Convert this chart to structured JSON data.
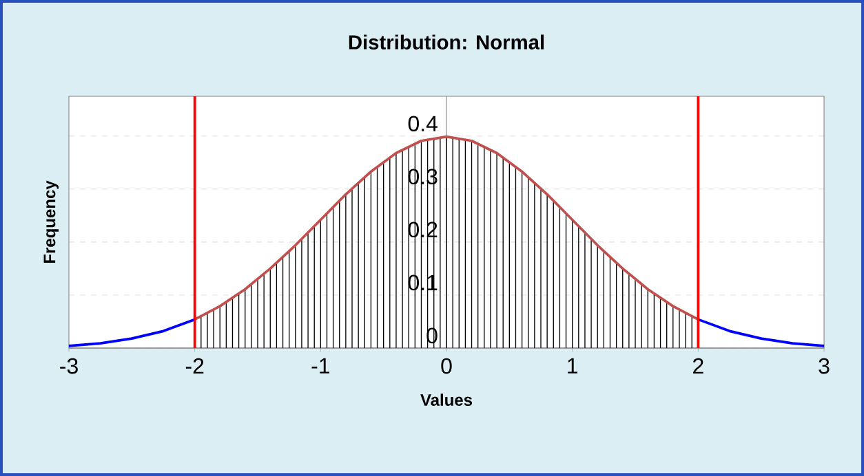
{
  "chart_data": {
    "type": "line",
    "title": "Distribution:  Normal",
    "xlabel": "Values",
    "ylabel": "Frequency",
    "series": [
      {
        "color": "#0000ff",
        "x": [
          -3,
          -2.75,
          -2.5,
          -2.25,
          -2,
          0,
          2,
          2.25,
          2.5,
          2.75,
          3
        ],
        "values": [
          0.004,
          0.009,
          0.018,
          0.032,
          0.054,
          null,
          0.054,
          0.032,
          0.018,
          0.009,
          0.004
        ]
      },
      {
        "type": "bar",
        "color": "#000000",
        "x": [
          -1.95,
          -1.9,
          -1.85,
          -1.8,
          -1.75,
          -1.7,
          -1.65,
          -1.6,
          -1.55,
          -1.5,
          -1.45,
          -1.4,
          -1.35,
          -1.3,
          -1.25,
          -1.2,
          -1.15,
          -1.1,
          -1.05,
          -1,
          -0.95,
          -0.9,
          -0.85,
          -0.8,
          -0.75,
          -0.7,
          -0.65,
          -0.6,
          -0.55,
          -0.5,
          -0.45,
          -0.4,
          -0.35,
          -0.3,
          -0.25,
          -0.2,
          -0.15,
          -0.1,
          -0.05,
          0,
          0.05,
          0.1,
          0.15,
          0.2,
          0.25,
          0.3,
          0.35,
          0.4,
          0.45,
          0.5,
          0.55,
          0.6,
          0.65,
          0.7,
          0.75,
          0.8,
          0.85,
          0.9,
          0.95,
          1,
          1.05,
          1.1,
          1.15,
          1.2,
          1.25,
          1.3,
          1.35,
          1.4,
          1.45,
          1.5,
          1.55,
          1.6,
          1.65,
          1.7,
          1.75,
          1.8,
          1.85,
          1.9,
          1.95
        ],
        "values": [
          0.06,
          0.066,
          0.072,
          0.079,
          0.086,
          0.094,
          0.102,
          0.111,
          0.12,
          0.13,
          0.139,
          0.15,
          0.16,
          0.171,
          0.183,
          0.194,
          0.206,
          0.218,
          0.23,
          0.242,
          0.254,
          0.266,
          0.278,
          0.29,
          0.301,
          0.312,
          0.323,
          0.333,
          0.343,
          0.352,
          0.361,
          0.368,
          0.375,
          0.381,
          0.387,
          0.391,
          0.394,
          0.397,
          0.398,
          0.399,
          0.398,
          0.397,
          0.394,
          0.391,
          0.387,
          0.381,
          0.375,
          0.368,
          0.361,
          0.352,
          0.343,
          0.333,
          0.323,
          0.312,
          0.301,
          0.29,
          0.278,
          0.266,
          0.254,
          0.242,
          0.23,
          0.218,
          0.206,
          0.194,
          0.183,
          0.171,
          0.16,
          0.15,
          0.139,
          0.13,
          0.12,
          0.111,
          0.102,
          0.094,
          0.086,
          0.079,
          0.072,
          0.066,
          0.06
        ]
      },
      {
        "color": "#c0504d",
        "x": [
          -2,
          -1.8,
          -1.6,
          -1.4,
          -1.2,
          -1,
          -0.8,
          -0.6,
          -0.4,
          -0.2,
          0,
          0.2,
          0.4,
          0.6,
          0.8,
          1,
          1.2,
          1.4,
          1.6,
          1.8,
          2
        ],
        "values": [
          0.054,
          0.079,
          0.111,
          0.15,
          0.194,
          0.242,
          0.29,
          0.333,
          0.368,
          0.391,
          0.399,
          0.391,
          0.368,
          0.333,
          0.29,
          0.242,
          0.194,
          0.15,
          0.111,
          0.079,
          0.054
        ]
      }
    ],
    "ref_lines": [
      {
        "axis": "x",
        "value": -2,
        "color": "#ff0000"
      },
      {
        "axis": "x",
        "value": 2,
        "color": "#ff0000"
      }
    ],
    "xlim": [
      -3,
      3
    ],
    "ylim": [
      0,
      0.475
    ],
    "xticks": [
      -3,
      -2,
      -1,
      0,
      1,
      2,
      3
    ],
    "yticks": [
      0,
      0.1,
      0.2,
      0.3,
      0.4
    ],
    "grid": "y",
    "marker": "none"
  }
}
